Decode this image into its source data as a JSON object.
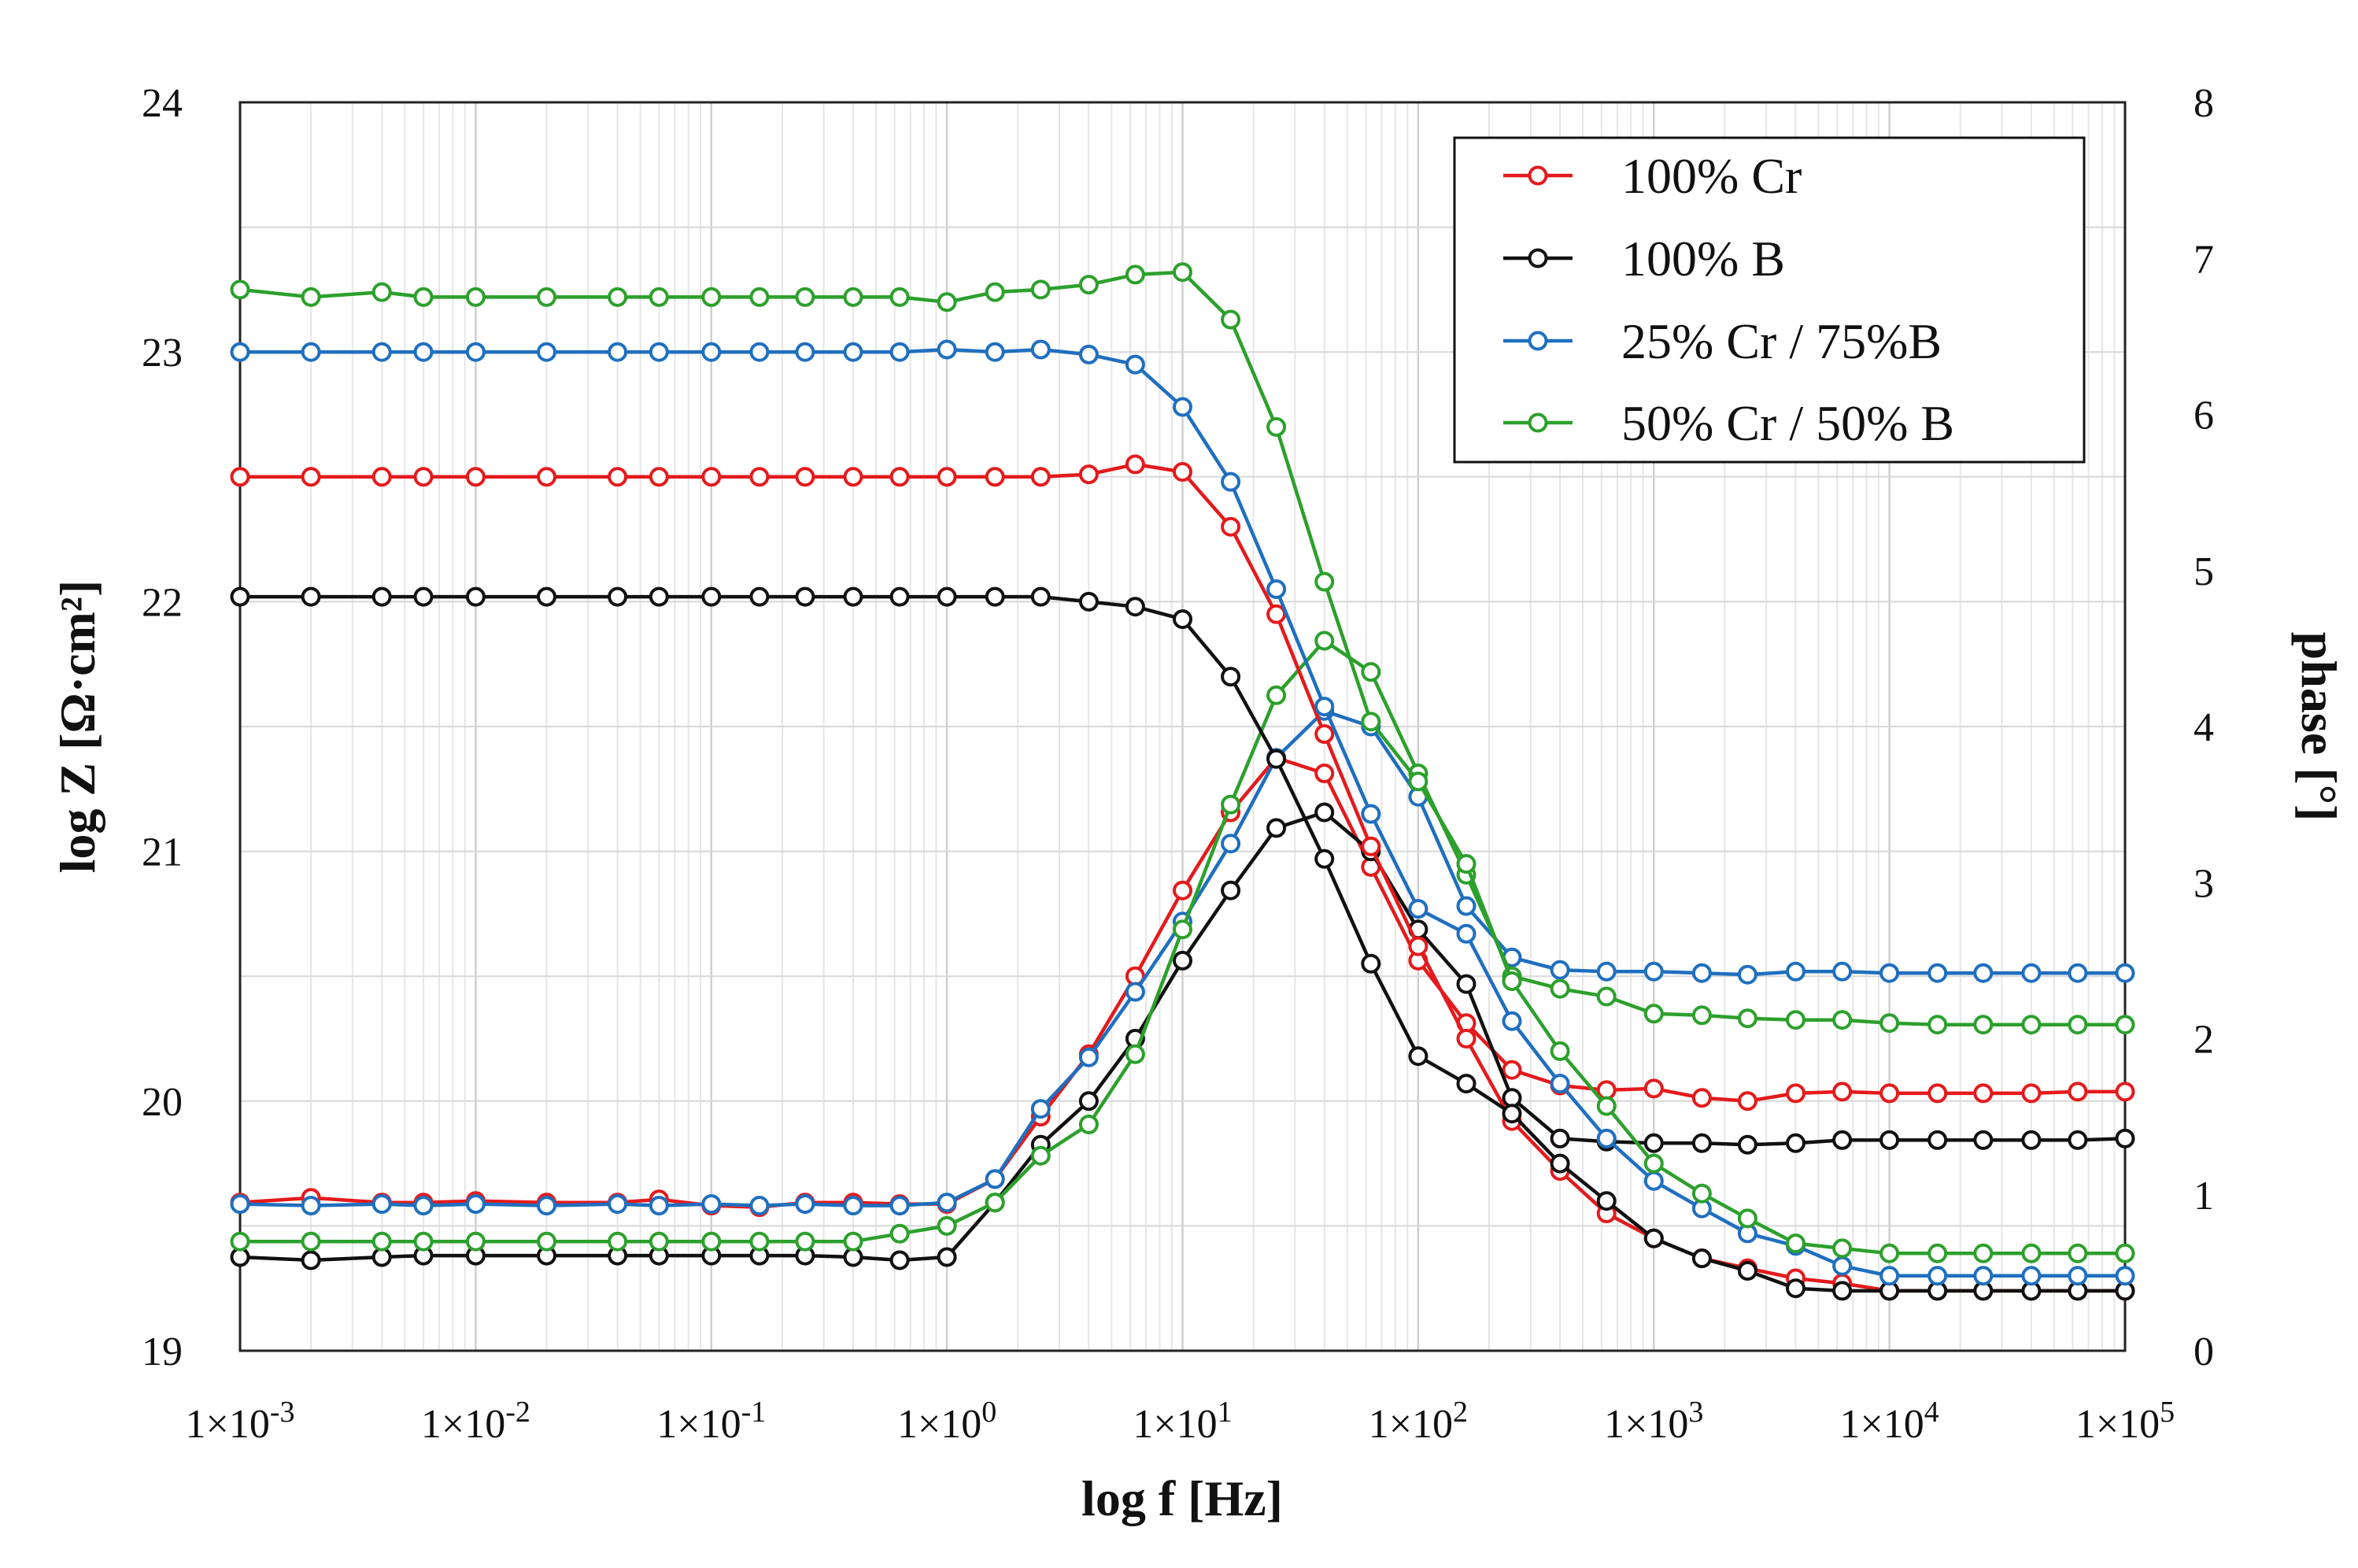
{
  "chart_data": {
    "type": "line",
    "xlabel": "log f [Hz]",
    "ylabel": "log Z [Ω·cm²]",
    "y2label": "phase [°]",
    "x_scale": "log",
    "xlim": [
      0.001,
      100000
    ],
    "ylim": [
      19,
      24
    ],
    "y2lim": [
      0,
      8
    ],
    "grid": true,
    "legend_position": "top-right",
    "x_tick_labels": [
      {
        "mant": "1×10",
        "exp": "-3"
      },
      {
        "mant": "1×10",
        "exp": "-2"
      },
      {
        "mant": "1×10",
        "exp": "-1"
      },
      {
        "mant": "1×10",
        "exp": "0"
      },
      {
        "mant": "1×10",
        "exp": "1"
      },
      {
        "mant": "1×10",
        "exp": "2"
      },
      {
        "mant": "1×10",
        "exp": "3"
      },
      {
        "mant": "1×10",
        "exp": "4"
      },
      {
        "mant": "1×10",
        "exp": "5"
      }
    ],
    "y_ticks": [
      19,
      20,
      21,
      22,
      23,
      24
    ],
    "y2_ticks": [
      0,
      1,
      2,
      3,
      4,
      5,
      6,
      7,
      8
    ],
    "x": [
      0.001,
      0.002,
      0.004,
      0.006,
      0.01,
      0.02,
      0.04,
      0.06,
      0.1,
      0.16,
      0.25,
      0.4,
      0.63,
      1,
      1.6,
      2.5,
      4,
      6.3,
      10,
      16,
      25,
      40,
      63,
      100,
      160,
      250,
      400,
      630,
      1000,
      1600,
      2500,
      4000,
      6300,
      10000,
      16000,
      25000,
      40000,
      63000,
      100000
    ],
    "series": [
      {
        "name": "100% Cr",
        "color": "#e41a1c",
        "logZ": [
          22.5,
          22.5,
          22.5,
          22.5,
          22.5,
          22.5,
          22.5,
          22.5,
          22.5,
          22.5,
          22.5,
          22.5,
          22.5,
          22.5,
          22.5,
          22.5,
          22.51,
          22.55,
          22.52,
          22.3,
          21.95,
          21.47,
          21.02,
          20.62,
          20.25,
          19.92,
          19.72,
          19.55,
          19.45,
          19.37,
          19.33,
          19.29,
          19.27,
          19.24,
          19.24,
          19.24,
          19.24,
          19.24,
          19.24
        ],
        "phase": [
          0.95,
          0.98,
          0.95,
          0.95,
          0.96,
          0.95,
          0.95,
          0.97,
          0.93,
          0.92,
          0.95,
          0.95,
          0.94,
          0.94,
          1.1,
          1.5,
          1.9,
          2.4,
          2.95,
          3.45,
          3.8,
          3.7,
          3.1,
          2.5,
          2.1,
          1.8,
          1.7,
          1.67,
          1.68,
          1.62,
          1.6,
          1.65,
          1.66,
          1.65,
          1.65,
          1.65,
          1.65,
          1.66,
          1.66
        ]
      },
      {
        "name": "100% B",
        "color": "#111111",
        "logZ": [
          22.02,
          22.02,
          22.02,
          22.02,
          22.02,
          22.02,
          22.02,
          22.02,
          22.02,
          22.02,
          22.02,
          22.02,
          22.02,
          22.02,
          22.02,
          22.02,
          22.0,
          21.98,
          21.93,
          21.7,
          21.37,
          20.97,
          20.55,
          20.18,
          20.07,
          19.95,
          19.75,
          19.6,
          19.45,
          19.37,
          19.32,
          19.25,
          19.24,
          19.24,
          19.24,
          19.24,
          19.24,
          19.24,
          19.24
        ],
        "phase": [
          0.6,
          0.58,
          0.6,
          0.61,
          0.61,
          0.61,
          0.61,
          0.61,
          0.61,
          0.61,
          0.61,
          0.6,
          0.58,
          0.6,
          0.95,
          1.32,
          1.6,
          2.0,
          2.5,
          2.95,
          3.35,
          3.45,
          3.2,
          2.7,
          2.35,
          1.62,
          1.36,
          1.34,
          1.33,
          1.33,
          1.32,
          1.33,
          1.35,
          1.35,
          1.35,
          1.35,
          1.35,
          1.35,
          1.36
        ]
      },
      {
        "name": "25% Cr / 75%B",
        "color": "#1f6fbf",
        "logZ": [
          23.0,
          23.0,
          23.0,
          23.0,
          23.0,
          23.0,
          23.0,
          23.0,
          23.0,
          23.0,
          23.0,
          23.0,
          23.0,
          23.01,
          23.0,
          23.01,
          22.99,
          22.95,
          22.78,
          22.48,
          22.05,
          21.58,
          21.15,
          20.77,
          20.67,
          20.32,
          20.07,
          19.85,
          19.68,
          19.57,
          19.47,
          19.42,
          19.34,
          19.3,
          19.3,
          19.3,
          19.3,
          19.3,
          19.3
        ],
        "phase": [
          0.94,
          0.93,
          0.94,
          0.93,
          0.94,
          0.93,
          0.94,
          0.93,
          0.94,
          0.93,
          0.94,
          0.93,
          0.93,
          0.95,
          1.1,
          1.55,
          1.88,
          2.3,
          2.75,
          3.25,
          3.8,
          4.1,
          4.0,
          3.55,
          2.85,
          2.52,
          2.44,
          2.43,
          2.43,
          2.42,
          2.41,
          2.43,
          2.43,
          2.42,
          2.42,
          2.42,
          2.42,
          2.42,
          2.42
        ]
      },
      {
        "name": "50% Cr / 50% B",
        "color": "#2ca02c",
        "logZ": [
          23.25,
          23.22,
          23.24,
          23.22,
          23.22,
          23.22,
          23.22,
          23.22,
          23.22,
          23.22,
          23.22,
          23.22,
          23.22,
          23.2,
          23.24,
          23.25,
          23.27,
          23.31,
          23.32,
          23.13,
          22.7,
          22.08,
          21.52,
          21.28,
          20.95,
          20.48,
          20.2,
          19.98,
          19.75,
          19.63,
          19.53,
          19.43,
          19.41,
          19.39,
          19.39,
          19.39,
          19.39,
          19.39,
          19.39
        ],
        "phase": [
          0.7,
          0.7,
          0.7,
          0.7,
          0.7,
          0.7,
          0.7,
          0.7,
          0.7,
          0.7,
          0.7,
          0.7,
          0.75,
          0.8,
          0.95,
          1.25,
          1.45,
          1.9,
          2.7,
          3.5,
          4.2,
          4.55,
          4.35,
          3.7,
          3.05,
          2.4,
          2.32,
          2.27,
          2.16,
          2.15,
          2.13,
          2.12,
          2.12,
          2.1,
          2.09,
          2.09,
          2.09,
          2.09,
          2.09
        ]
      }
    ]
  }
}
